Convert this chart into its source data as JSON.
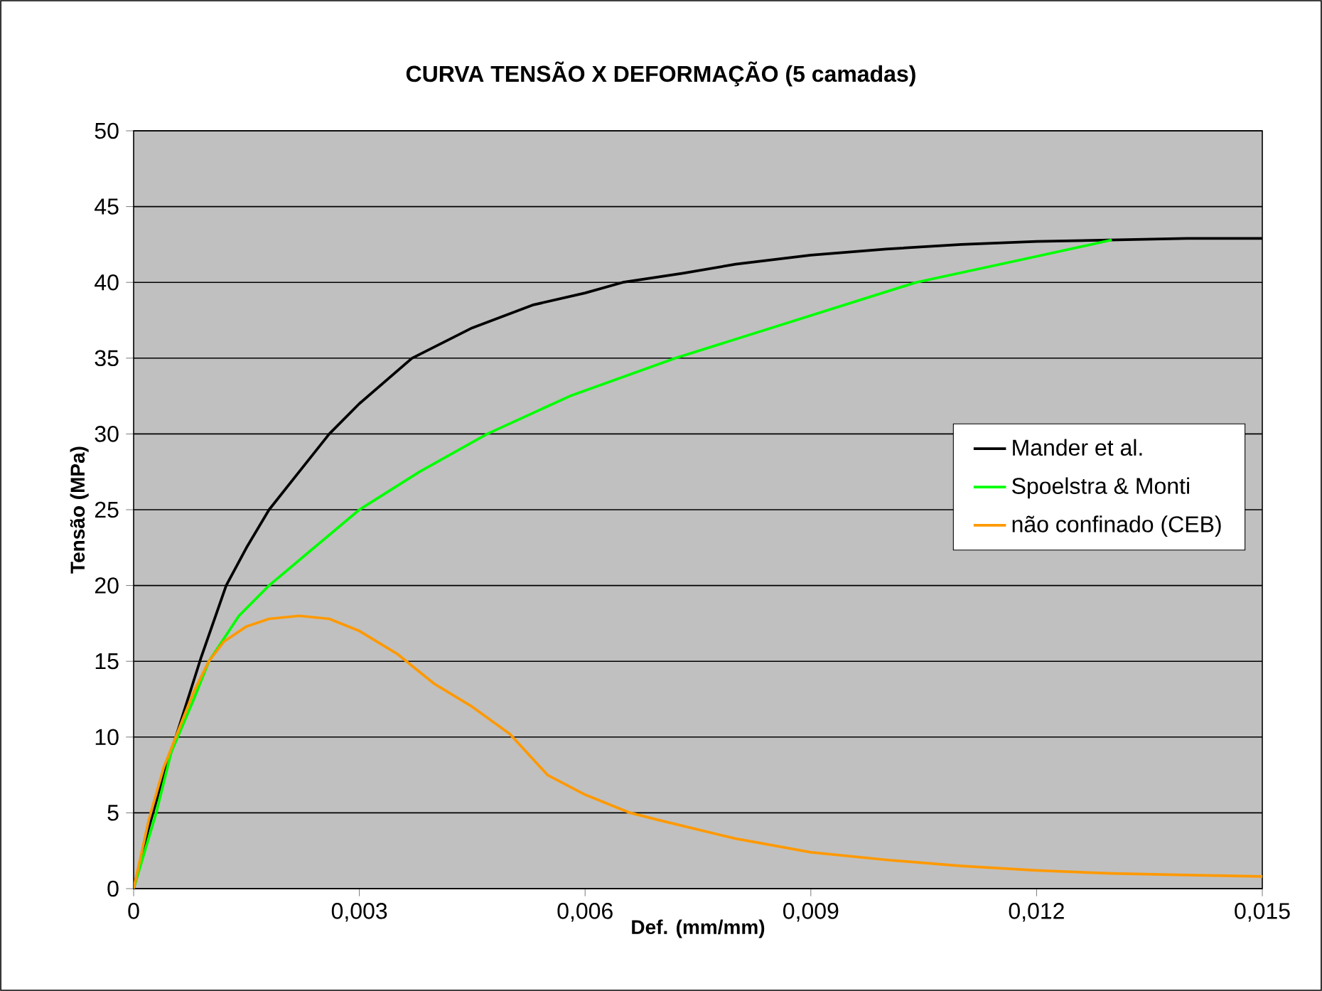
{
  "chart_data": {
    "type": "line",
    "title": "CURVA TENSÃO X DEFORMAÇÃO (5 camadas)",
    "xlabel": "Def. (mm/mm)",
    "ylabel": "Tensão (MPa)",
    "xlim": [
      0,
      0.015
    ],
    "ylim": [
      0,
      50
    ],
    "xticks": [
      0,
      {
        "value": 0.003,
        "label": "0,003"
      },
      {
        "value": 0.006,
        "label": "0,006"
      },
      {
        "value": 0.009,
        "label": "0,009"
      },
      {
        "value": 0.012,
        "label": "0,012"
      },
      {
        "value": 0.015,
        "label": "0,015"
      }
    ],
    "yticks": [
      0,
      5,
      10,
      15,
      20,
      25,
      30,
      35,
      40,
      45,
      50
    ],
    "grid": "y",
    "legend": "right",
    "series": [
      {
        "name": "Mander et al.",
        "color": "#000000",
        "x": [
          0,
          0.0002,
          0.0004,
          0.0009,
          0.00123,
          0.0015,
          0.0018,
          0.0022,
          0.0026,
          0.003,
          0.0037,
          0.0045,
          0.0053,
          0.006,
          0.0065,
          0.0073,
          0.008,
          0.009,
          0.01,
          0.011,
          0.012,
          0.013,
          0.014,
          0.015
        ],
        "values": [
          0,
          4,
          7.5,
          15.3,
          20,
          22.5,
          25,
          27.5,
          30,
          32,
          35,
          37,
          38.5,
          39.3,
          40,
          40.6,
          41.2,
          41.8,
          42.2,
          42.5,
          42.7,
          42.8,
          42.9,
          42.9
        ]
      },
      {
        "name": "Spoelstra & Monti",
        "color": "#00ff00",
        "x": [
          0,
          0.0003,
          0.0005,
          0.0008,
          0.001,
          0.0014,
          0.0018,
          0.0024,
          0.003,
          0.0038,
          0.0047,
          0.0058,
          0.0072,
          0.0088,
          0.0104,
          0.0118,
          0.013
        ],
        "values": [
          0,
          5,
          9,
          12.5,
          15,
          18,
          20,
          22.5,
          25,
          27.5,
          30,
          32.5,
          35,
          37.5,
          40,
          41.5,
          42.8
        ]
      },
      {
        "name": "não confinado (CEB)",
        "color": "#ff9900",
        "x": [
          0,
          0.0002,
          0.0004,
          0.0006,
          0.0008,
          0.001,
          0.0012,
          0.0015,
          0.0018,
          0.0022,
          0.0026,
          0.003,
          0.0035,
          0.004,
          0.0045,
          0.005,
          0.0055,
          0.006,
          0.0066,
          0.007,
          0.008,
          0.009,
          0.01,
          0.011,
          0.012,
          0.013,
          0.014,
          0.015
        ],
        "values": [
          0,
          4.5,
          8,
          10.5,
          13,
          15,
          16.3,
          17.3,
          17.8,
          18,
          17.8,
          17,
          15.5,
          13.5,
          12,
          10.2,
          7.5,
          6.2,
          5,
          4.5,
          3.3,
          2.4,
          1.9,
          1.5,
          1.2,
          1,
          0.9,
          0.8
        ]
      }
    ]
  }
}
